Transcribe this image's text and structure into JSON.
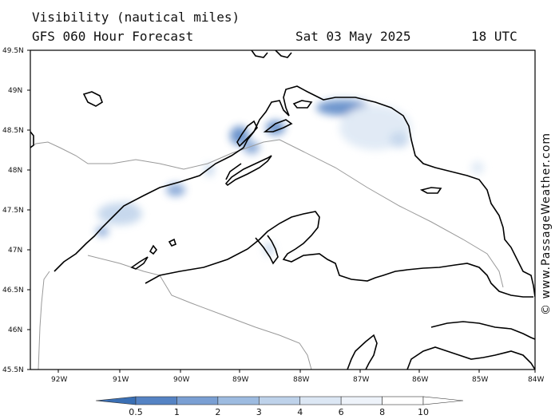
{
  "title": "Visibility (nautical miles)",
  "subtitle": "GFS 060 Hour Forecast",
  "date": "Sat 03 May 2025",
  "time": "18 UTC",
  "credit": "© www.PassageWeather.com",
  "lat_labels": [
    "49.5N",
    "49N",
    "48.5N",
    "48N",
    "47.5N",
    "47N",
    "46.5N",
    "46N",
    "45.5N"
  ],
  "lon_labels": [
    "92W",
    "91W",
    "90W",
    "89W",
    "88W",
    "87W",
    "86W",
    "85W",
    "84W"
  ],
  "colorbar": {
    "labels": [
      "0.5",
      "1",
      "2",
      "3",
      "4",
      "6",
      "8",
      "10"
    ],
    "colors": [
      "#3a6fb4",
      "#5583c4",
      "#7a9fd3",
      "#9dbbe0",
      "#bed2ea",
      "#dce7f4",
      "#eef3fa",
      "#ffffff"
    ]
  },
  "colors": {
    "land_line": "#000000",
    "border_line": "#999999",
    "frame": "#000000"
  }
}
